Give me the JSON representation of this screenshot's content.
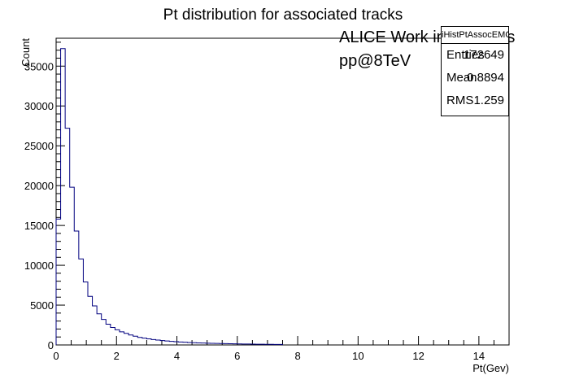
{
  "chart_data": {
    "type": "bar",
    "style": "step-histogram",
    "title": "Pt distribution for associated tracks",
    "xlabel": "Pt(Gev)",
    "ylabel": "Count",
    "xlim": [
      0,
      15
    ],
    "ylim": [
      0,
      38500
    ],
    "x_ticks": [
      0,
      2,
      4,
      6,
      8,
      10,
      12,
      14
    ],
    "y_ticks": [
      0,
      5000,
      10000,
      15000,
      20000,
      25000,
      30000,
      35000
    ],
    "bin_width": 0.15,
    "bin_start": 0,
    "values": [
      15800,
      37200,
      27200,
      19800,
      14300,
      10800,
      7900,
      6100,
      4900,
      3900,
      3200,
      2600,
      2200,
      1900,
      1650,
      1450,
      1250,
      1100,
      950,
      850,
      760,
      680,
      610,
      550,
      500,
      450,
      410,
      370,
      340,
      310,
      285,
      260,
      240,
      220,
      205,
      190,
      175,
      160,
      150,
      140,
      130,
      120,
      110,
      100,
      92,
      85,
      78,
      72,
      66,
      60
    ],
    "line_color": "#00007f",
    "annotations": [
      "ALICE Work in Progress",
      "pp@8TeV"
    ],
    "stats": {
      "title": "iHistPtAssocEMCJet",
      "rows": [
        {
          "label": "Entries",
          "value": "172649"
        },
        {
          "label": "Mean",
          "value": "0.8894"
        },
        {
          "label": "RMS",
          "value": "1.259"
        }
      ]
    }
  }
}
